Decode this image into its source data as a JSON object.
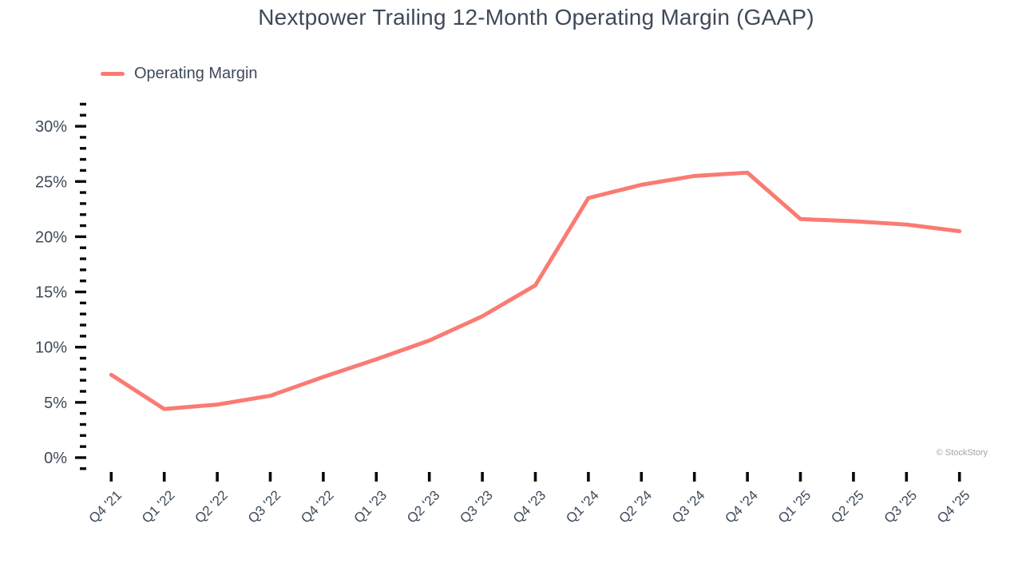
{
  "title": "Nextpower Trailing 12-Month Operating Margin (GAAP)",
  "legend": {
    "label": "Operating Margin",
    "swatch_color": "#f97b73"
  },
  "watermark": "© StockStory",
  "colors": {
    "line": "#f97b73",
    "text": "#3e4a59",
    "tick": "#0a0a0a",
    "watermark": "#a3a3a3",
    "background": "#ffffff"
  },
  "chart_data": {
    "type": "line",
    "title": "Nextpower Trailing 12-Month Operating Margin (GAAP)",
    "categories": [
      "Q4 '21",
      "Q1 '22",
      "Q2 '22",
      "Q3 '22",
      "Q4 '22",
      "Q1 '23",
      "Q2 '23",
      "Q3 '23",
      "Q4 '23",
      "Q1 '24",
      "Q2 '24",
      "Q3 '24",
      "Q4 '24",
      "Q1 '25",
      "Q2 '25",
      "Q3 '25",
      "Q4 '25"
    ],
    "series": [
      {
        "name": "Operating Margin",
        "color": "#f97b73",
        "values": [
          7.5,
          4.4,
          4.8,
          5.6,
          7.3,
          8.9,
          10.6,
          12.8,
          15.6,
          23.5,
          24.7,
          25.5,
          25.8,
          21.6,
          21.4,
          21.1,
          20.5
        ]
      }
    ],
    "xlabel": "",
    "ylabel": "",
    "ylim": [
      -1,
      32
    ],
    "y_major_ticks": [
      0,
      5,
      10,
      15,
      20,
      25,
      30
    ],
    "y_minor_step": 1,
    "y_tick_suffix": "%",
    "x_tick_rotation": -45,
    "grid": false,
    "legend_position": "top-left",
    "watermark": "© StockStory"
  }
}
